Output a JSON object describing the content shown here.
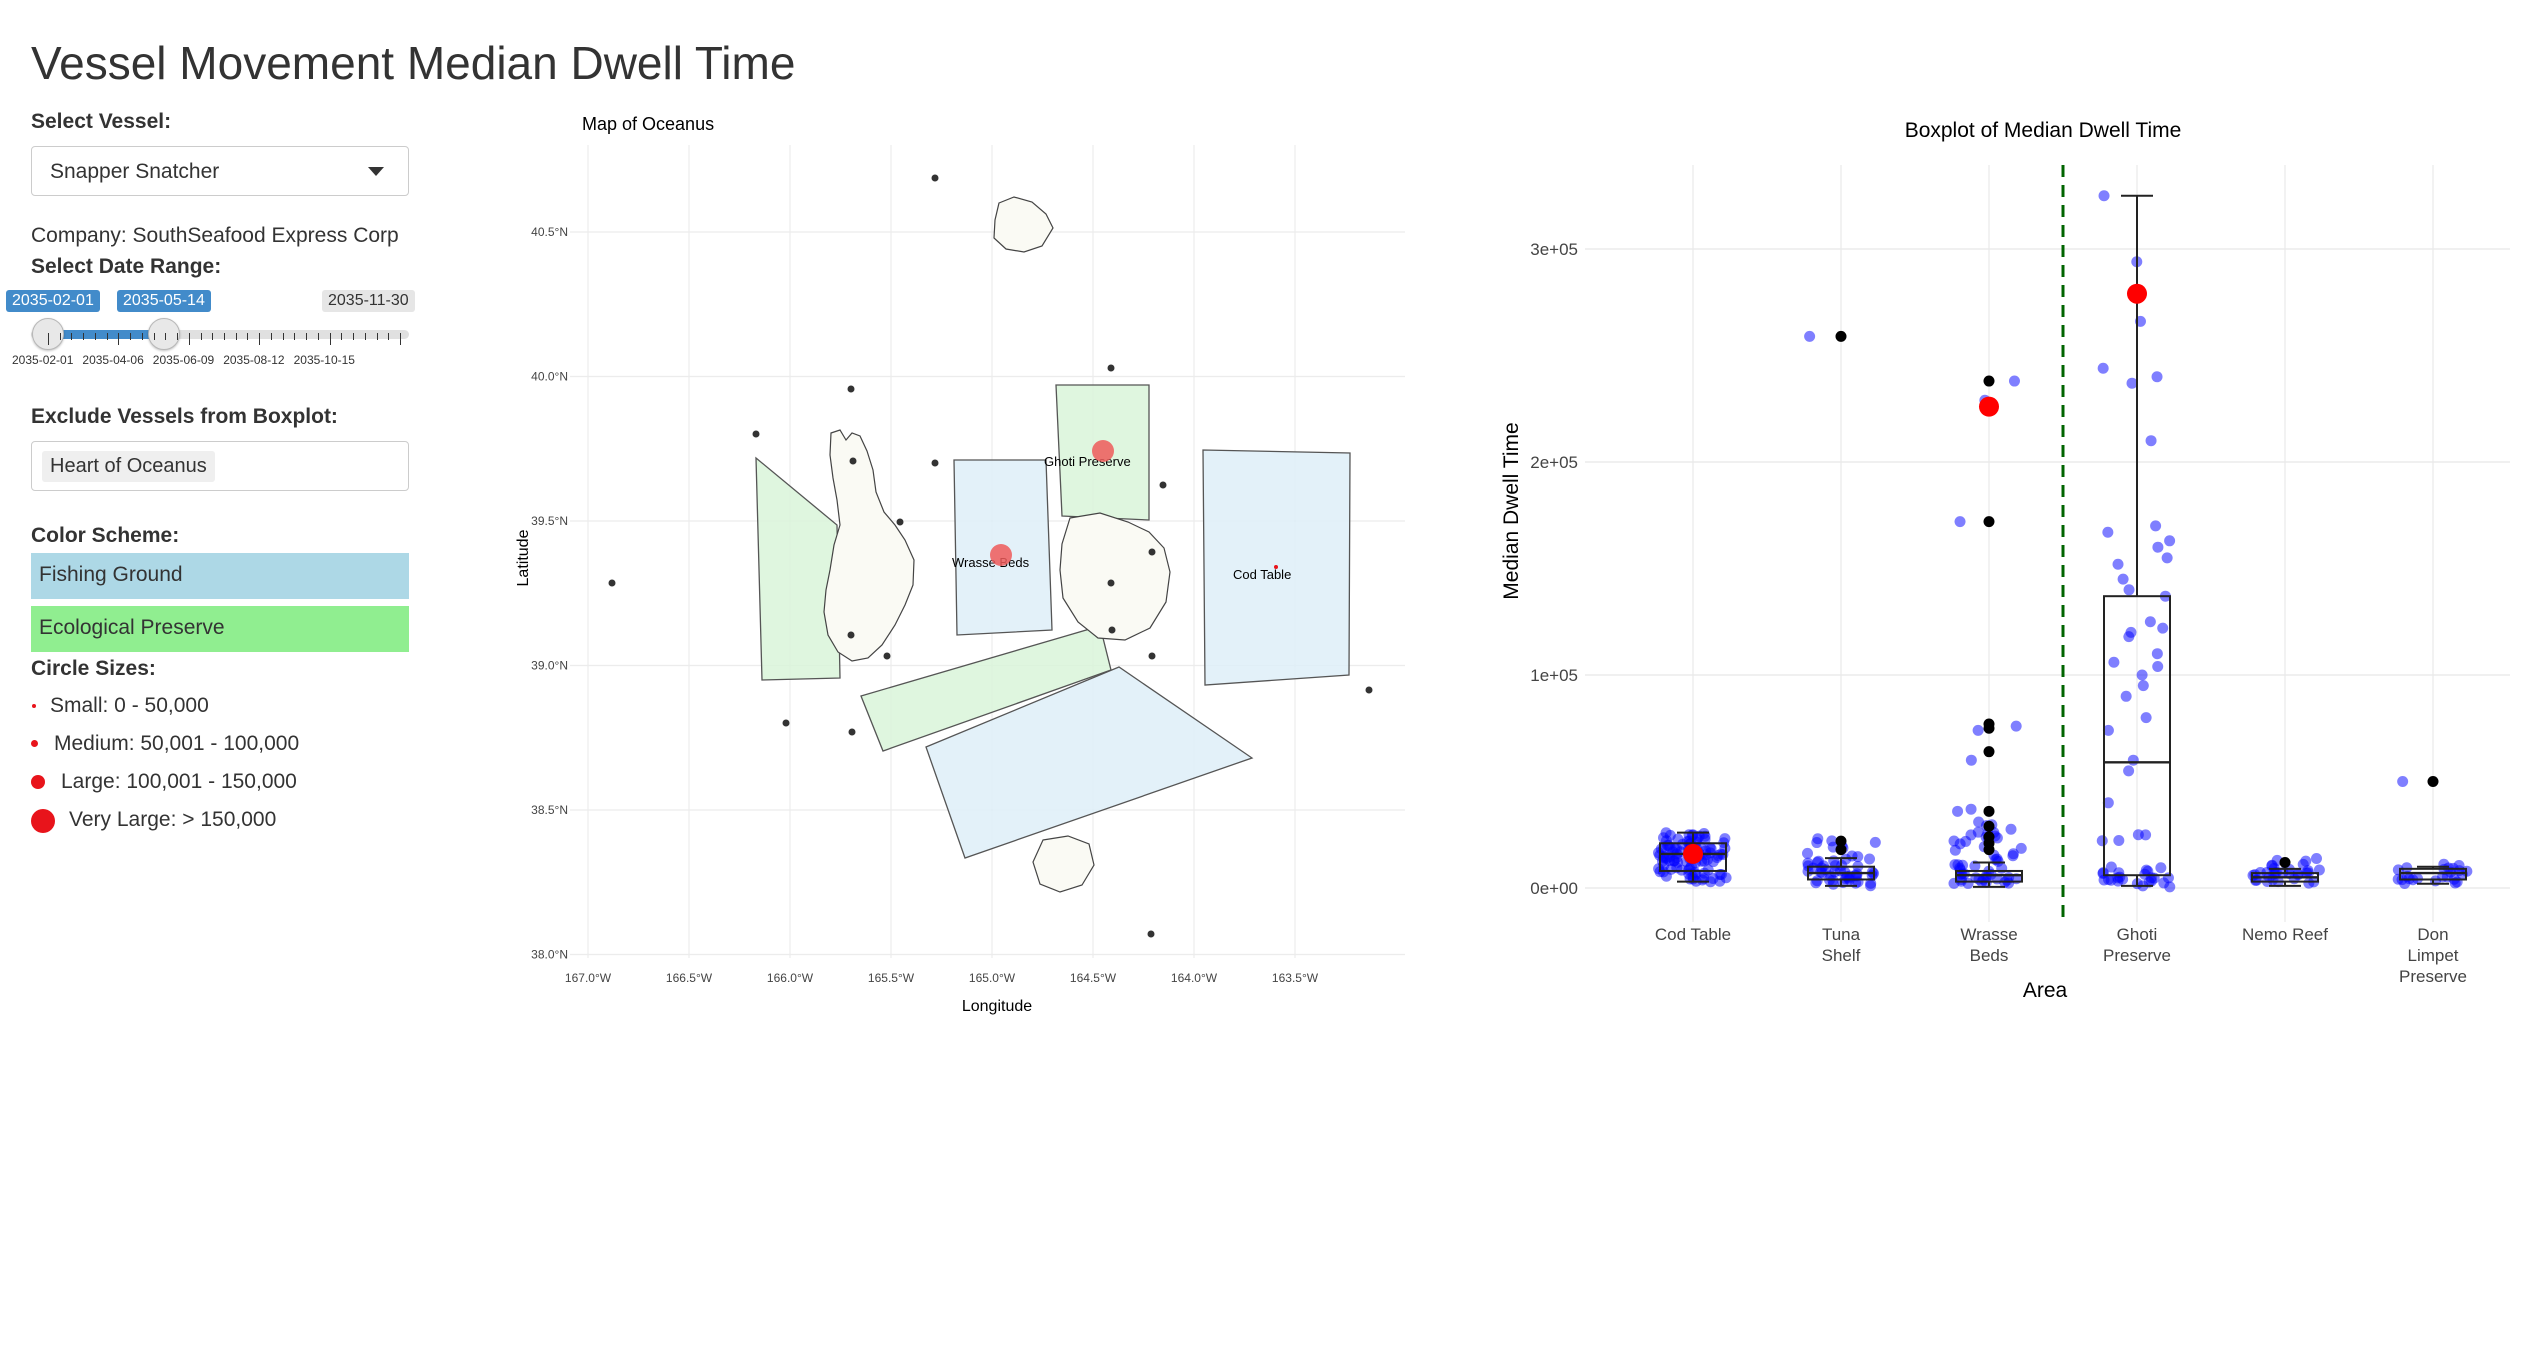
{
  "page": {
    "title": "Vessel Movement Median Dwell Time"
  },
  "sidebar": {
    "vessel_label": "Select Vessel:",
    "vessel_value": "Snapper Snatcher",
    "company_text": "Company: SouthSeafood Express Corp",
    "date_label": "Select Date Range:",
    "date_from": "2035-02-01",
    "date_to": "2035-05-14",
    "date_max": "2035-11-30",
    "slider_ticks": [
      "2035-02-01",
      "2035-04-06",
      "2035-06-09",
      "2035-08-12",
      "2035-10-15"
    ],
    "exclude_label": "Exclude Vessels from Boxplot:",
    "excluded": [
      "Heart of Oceanus"
    ],
    "color_label": "Color Scheme:",
    "color_scheme": [
      {
        "label": "Fishing Ground",
        "color": "#add8e6"
      },
      {
        "label": "Ecological Preserve",
        "color": "#90ee90"
      }
    ],
    "size_label": "Circle Sizes:",
    "sizes": [
      {
        "label": "Small: 0 - 50,000"
      },
      {
        "label": "Medium: 50,001 - 100,000"
      },
      {
        "label": "Large: 100,001 - 150,000"
      },
      {
        "label": "Very Large: > 150,000"
      }
    ]
  },
  "map": {
    "title": "Map of Oceanus",
    "xlabel": "Longitude",
    "ylabel": "Latitude",
    "x_ticks": [
      "167.0°W",
      "166.5°W",
      "166.0°W",
      "165.5°W",
      "165.0°W",
      "164.5°W",
      "164.0°W",
      "163.5°W"
    ],
    "y_ticks": [
      "40.5°N",
      "40.0°N",
      "39.5°N",
      "39.0°N",
      "38.5°N",
      "38.0°N"
    ],
    "zones": [
      {
        "name": "Ghoti Preserve",
        "type": "Ecological Preserve"
      },
      {
        "name": "Wrasse Beds",
        "type": "Fishing Ground"
      },
      {
        "name": "Cod Table",
        "type": "Fishing Ground"
      }
    ]
  },
  "chart_data": {
    "type": "box",
    "title": "Boxplot of Median Dwell Time",
    "xlabel": "Area",
    "ylabel": "Median Dwell Time",
    "categories": [
      "Cod Table",
      "Tuna Shelf",
      "Wrasse Beds",
      "Ghoti Preserve",
      "Nemo Reef",
      "Don Limpet Preserve"
    ],
    "y_ticks": [
      "0e+00",
      "1e+05",
      "2e+05",
      "3e+05"
    ],
    "ylim": [
      0,
      330000
    ],
    "boxes": [
      {
        "category": "Cod Table",
        "q1": 8000,
        "median": 16000,
        "q3": 21000,
        "whisker_low": 3000,
        "whisker_high": 26000
      },
      {
        "category": "Tuna Shelf",
        "q1": 4000,
        "median": 7000,
        "q3": 10000,
        "whisker_low": 1000,
        "whisker_high": 14000
      },
      {
        "category": "Wrasse Beds",
        "q1": 3000,
        "median": 6000,
        "q3": 8000,
        "whisker_low": 500,
        "whisker_high": 12000
      },
      {
        "category": "Ghoti Preserve",
        "q1": 6000,
        "median": 59000,
        "q3": 137000,
        "whisker_low": 1000,
        "whisker_high": 325000
      },
      {
        "category": "Nemo Reef",
        "q1": 3000,
        "median": 5000,
        "q3": 7000,
        "whisker_low": 1000,
        "whisker_high": 9000
      },
      {
        "category": "Don Limpet Preserve",
        "q1": 4000,
        "median": 7000,
        "q3": 9000,
        "whisker_low": 2000,
        "whisker_high": 10000
      }
    ],
    "highlight_points": [
      {
        "category": "Cod Table",
        "y": 16000
      },
      {
        "category": "Wrasse Beds",
        "y": 226000
      },
      {
        "category": "Ghoti Preserve",
        "y": 279000
      }
    ],
    "outliers": [
      {
        "category": "Tuna Shelf",
        "values": [
          259000,
          22000,
          18000
        ]
      },
      {
        "category": "Wrasse Beds",
        "values": [
          238000,
          172000,
          77000,
          75000,
          64000,
          36000,
          29000,
          24000,
          21000,
          18000
        ]
      },
      {
        "category": "Nemo Reef",
        "values": [
          12000
        ]
      },
      {
        "category": "Don Limpet Preserve",
        "values": [
          50000
        ]
      }
    ],
    "scatter": [
      {
        "category": "Cod Table",
        "values": [
          25000,
          24000,
          23000,
          22000,
          21000,
          20000,
          19000,
          18000,
          17500,
          17000,
          16500,
          16000,
          15000,
          14000,
          13000,
          12000,
          11000,
          10000,
          9000,
          8000,
          7000,
          6000,
          5000,
          4000
        ]
      },
      {
        "category": "Tuna Shelf",
        "values": [
          259000,
          22000,
          18000,
          14000,
          12000,
          10000,
          9000,
          8000,
          7000,
          6000,
          5000,
          4000,
          3000,
          2000
        ]
      },
      {
        "category": "Wrasse Beds",
        "values": [
          238000,
          229000,
          172000,
          76000,
          74000,
          60000,
          37000,
          36000,
          31000,
          28000,
          25000,
          22000,
          20000,
          17000,
          12000,
          10000,
          8000,
          6000,
          5000,
          4000,
          3000,
          2000
        ]
      },
      {
        "category": "Ghoti Preserve",
        "values": [
          325000,
          294000,
          280000,
          266000,
          244000,
          240000,
          237000,
          210000,
          170000,
          167000,
          163000,
          160000,
          155000,
          152000,
          145000,
          140000,
          137000,
          125000,
          122000,
          120000,
          118000,
          110000,
          106000,
          104000,
          100000,
          95000,
          90000,
          80000,
          74000,
          60000,
          55000,
          40000,
          24000,
          8000,
          6000,
          5000,
          4000,
          3000,
          2000
        ]
      },
      {
        "category": "Nemo Reef",
        "values": [
          12000,
          10000,
          8000,
          7000,
          6000,
          5000,
          4000,
          3000
        ]
      },
      {
        "category": "Don Limpet Preserve",
        "values": [
          50000,
          10000,
          9000,
          7000,
          5000,
          4000,
          3000
        ]
      }
    ],
    "divider_after_category": "Wrasse Beds",
    "colors": {
      "points": "#0000ff",
      "outliers": "#000000",
      "highlight": "#ff0000",
      "divider": "#006400"
    }
  }
}
